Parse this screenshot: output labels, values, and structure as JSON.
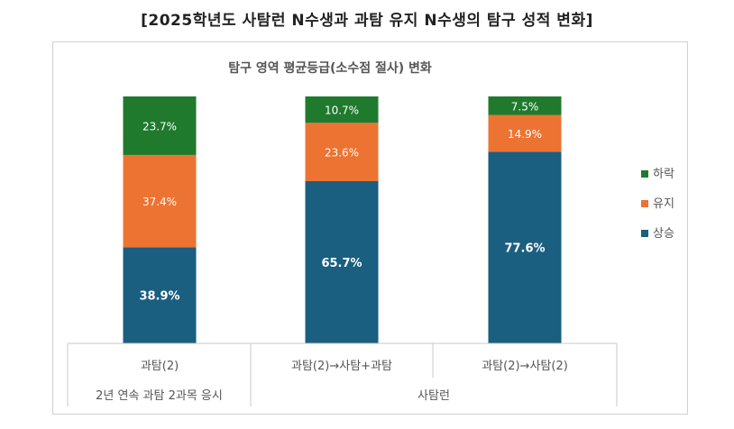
{
  "header": {
    "title": "[2025학년도 사탐런 N수생과 과탐 유지 N수생의 탐구 성적 변화]"
  },
  "chart_data": {
    "type": "bar",
    "stacked": true,
    "title": "탐구 영역 평균등급(소수점 절사) 변화",
    "categories": [
      "과탐(2)",
      "과탐(2)→사탐+과탐",
      "과탐(2)→사탐(2)"
    ],
    "groups": [
      {
        "label": "2년 연속 과탐 2과목 응시",
        "categories": [
          0
        ]
      },
      {
        "label": "사탐런",
        "categories": [
          1,
          2
        ]
      }
    ],
    "series": [
      {
        "name": "상승",
        "color": "#1a5e80",
        "values": [
          38.9,
          65.7,
          77.6
        ]
      },
      {
        "name": "유지",
        "color": "#ed7332",
        "values": [
          37.4,
          23.6,
          14.9
        ]
      },
      {
        "name": "하락",
        "color": "#1f7a2e",
        "values": [
          23.7,
          10.7,
          7.5
        ]
      }
    ],
    "value_suffix": "%",
    "legend_position": "right",
    "legend_order": [
      "하락",
      "유지",
      "상승"
    ],
    "ylim": [
      0,
      100
    ],
    "grid": false
  }
}
